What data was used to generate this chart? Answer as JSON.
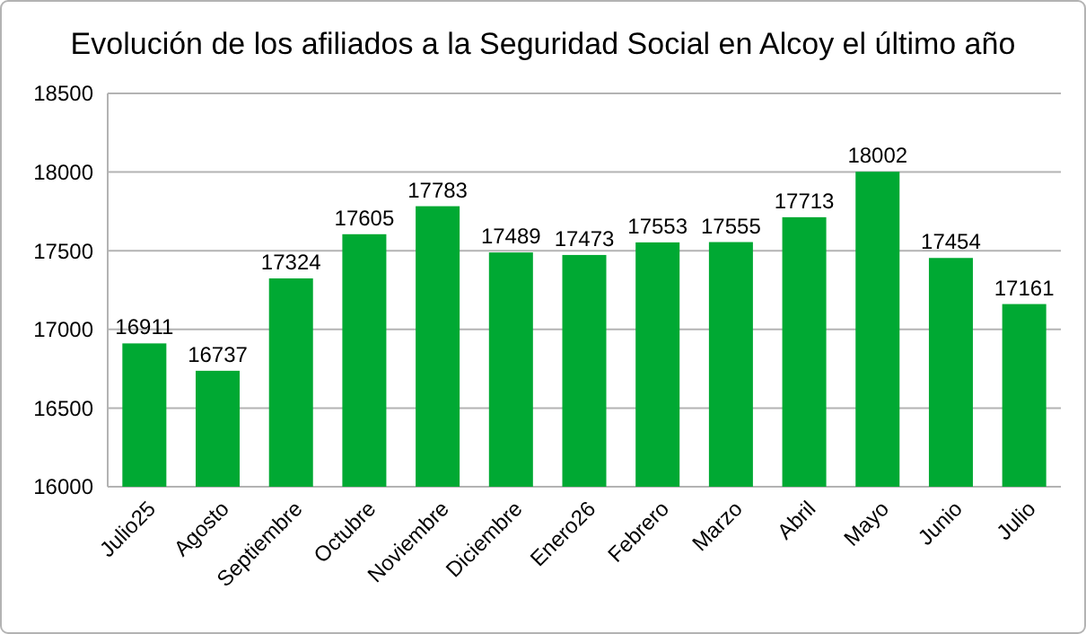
{
  "chart_data": {
    "type": "bar",
    "title": "Evolución de los afiliados a la Seguridad Social en Alcoy el último año",
    "categories": [
      "Julio25",
      "Agosto",
      "Septiembre",
      "Octubre",
      "Noviembre",
      "Diciembre",
      "Enero26",
      "Febrero",
      "Marzo",
      "Abril",
      "Mayo",
      "Junio",
      "Julio"
    ],
    "values": [
      16911,
      16737,
      17324,
      17605,
      17783,
      17489,
      17473,
      17553,
      17555,
      17713,
      18002,
      17454,
      17161
    ],
    "color": "#00a933",
    "ylim": [
      16000,
      18500
    ],
    "yticks": [
      16000,
      16500,
      17000,
      17500,
      18000,
      18500
    ],
    "grid": "y",
    "data_labels": true
  }
}
